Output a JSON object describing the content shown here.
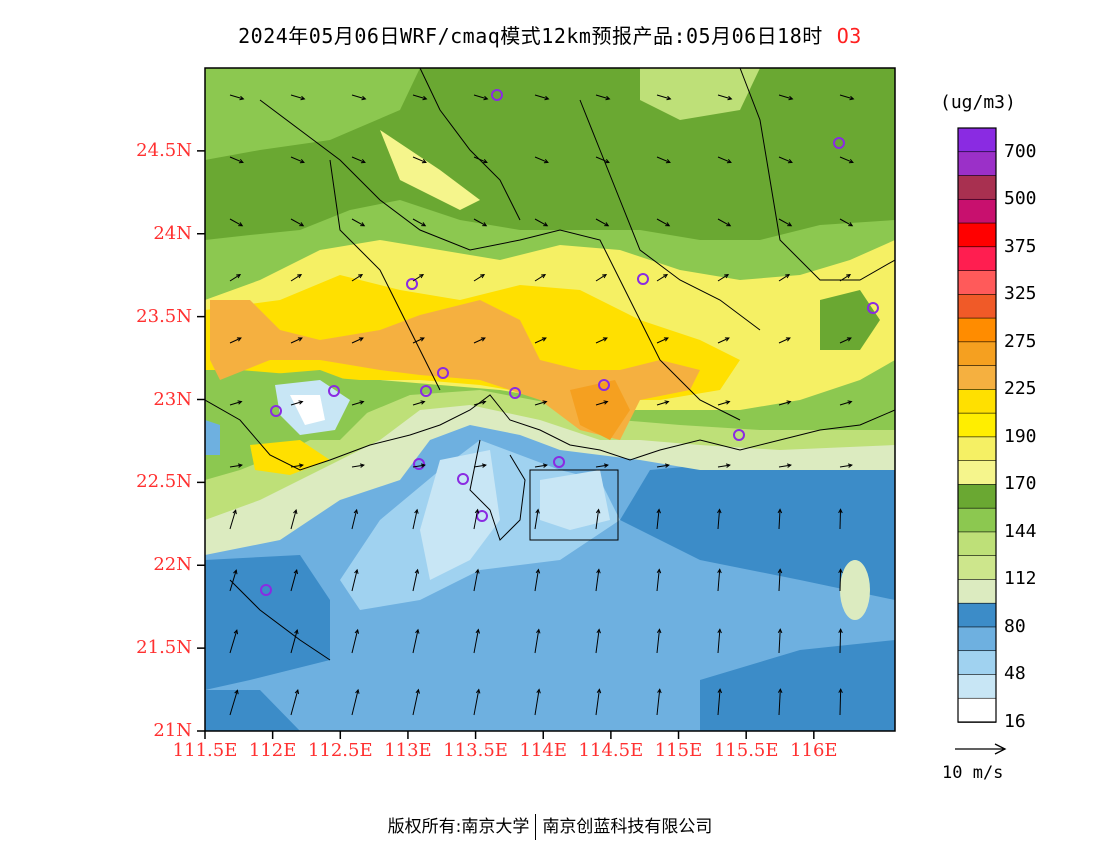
{
  "title": {
    "text": "2024年05月06日WRF/cmaq模式12km预报产品:05月06日18时",
    "variable": "O3"
  },
  "axes": {
    "y_labels": [
      "24.5N",
      "24N",
      "23.5N",
      "23N",
      "22.5N",
      "22N",
      "21.5N",
      "21N"
    ],
    "y_values": [
      24.5,
      24,
      23.5,
      23,
      22.5,
      22,
      21.5,
      21
    ],
    "x_labels": [
      "111.5E",
      "112E",
      "112.5E",
      "113E",
      "113.5E",
      "114E",
      "114.5E",
      "115E",
      "115.5E",
      "116E"
    ],
    "x_values": [
      111.5,
      112,
      112.5,
      113,
      113.5,
      114,
      114.5,
      115,
      115.5,
      116
    ],
    "lon_range": [
      111.5,
      116.6
    ],
    "lat_range": [
      21,
      25
    ]
  },
  "colorbar": {
    "unit": "(ug/m3)",
    "labels": [
      "700",
      "500",
      "375",
      "325",
      "275",
      "225",
      "190",
      "170",
      "144",
      "112",
      "80",
      "48",
      "16"
    ],
    "colors": [
      "#8a2be2",
      "#9b30c8",
      "#a83050",
      "#c8106e",
      "#ff0000",
      "#ff1e50",
      "#ff5a5a",
      "#f05a28",
      "#ff8c00",
      "#f5a020",
      "#f5b040",
      "#ffe000",
      "#ffee00",
      "#f5f064",
      "#f5f58c",
      "#6aa832",
      "#8cc850",
      "#bee078",
      "#cde68c",
      "#dcebc0",
      "#3c8cc8",
      "#6eb0e0",
      "#a0d2f0",
      "#c8e6f5",
      "#ffffff"
    ]
  },
  "wind": {
    "label": "10 m/s"
  },
  "footer": {
    "left": "版权所有:南京大学",
    "right": "南京创蓝科技有限公司"
  }
}
